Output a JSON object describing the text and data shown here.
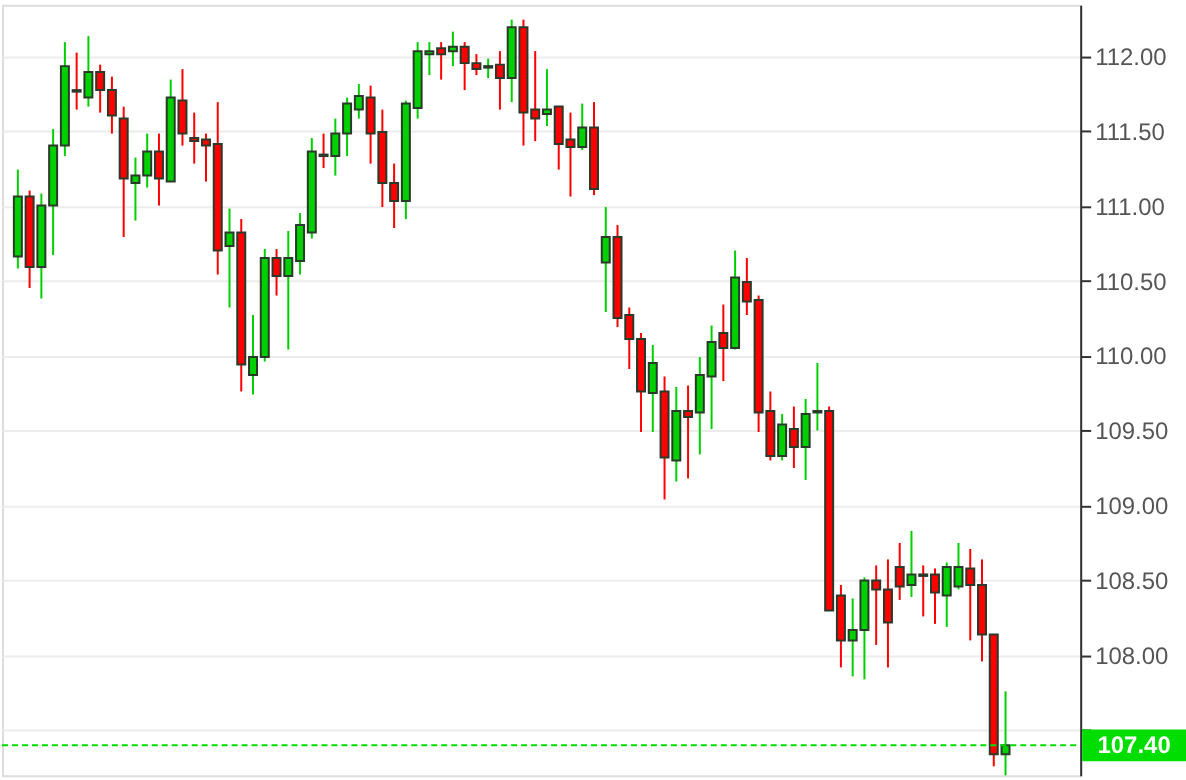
{
  "chart_data": {
    "type": "candlestick",
    "categories": [
      null,
      null,
      null,
      null,
      null,
      null,
      null,
      null,
      null,
      null,
      null,
      null,
      null,
      null,
      null,
      null,
      null,
      null,
      null,
      null,
      null,
      null,
      null,
      null,
      null,
      null,
      null,
      null,
      null,
      null,
      null,
      null,
      null,
      null,
      null,
      null,
      null,
      null,
      null,
      null,
      null,
      null,
      null,
      null,
      null,
      null,
      null,
      null,
      null,
      null,
      null,
      null,
      null,
      null,
      null,
      null,
      null,
      null,
      null,
      null,
      null,
      null,
      null,
      null,
      null,
      null,
      null,
      null,
      null,
      null,
      null,
      null,
      null,
      null,
      null,
      null,
      null,
      null,
      null,
      null,
      null,
      null,
      null,
      null,
      null
    ],
    "ohlc": [
      [
        110.66,
        111.24,
        110.58,
        111.06
      ],
      [
        111.06,
        111.1,
        110.45,
        110.59
      ],
      [
        110.59,
        111.08,
        110.38,
        111.0
      ],
      [
        111.0,
        111.51,
        110.67,
        111.4
      ],
      [
        111.4,
        112.09,
        111.33,
        111.93
      ],
      [
        111.77,
        112.02,
        111.64,
        111.76
      ],
      [
        111.72,
        112.13,
        111.66,
        111.89
      ],
      [
        111.89,
        111.94,
        111.62,
        111.77
      ],
      [
        111.77,
        111.86,
        111.48,
        111.6
      ],
      [
        111.58,
        111.66,
        110.79,
        111.18
      ],
      [
        111.15,
        111.32,
        110.9,
        111.2
      ],
      [
        111.2,
        111.48,
        111.12,
        111.36
      ],
      [
        111.36,
        111.48,
        111.0,
        111.18
      ],
      [
        111.16,
        111.84,
        111.16,
        111.72
      ],
      [
        111.7,
        111.91,
        111.4,
        111.48
      ],
      [
        111.45,
        111.62,
        111.28,
        111.43
      ],
      [
        111.44,
        111.48,
        111.16,
        111.4
      ],
      [
        111.41,
        111.69,
        110.54,
        110.7
      ],
      [
        110.73,
        110.98,
        110.32,
        110.82
      ],
      [
        110.82,
        110.91,
        109.76,
        109.94
      ],
      [
        109.87,
        110.27,
        109.74,
        109.99
      ],
      [
        109.99,
        110.71,
        109.96,
        110.65
      ],
      [
        110.65,
        110.71,
        110.4,
        110.53
      ],
      [
        110.53,
        110.83,
        110.04,
        110.65
      ],
      [
        110.63,
        110.95,
        110.54,
        110.87
      ],
      [
        110.82,
        111.45,
        110.78,
        111.36
      ],
      [
        111.34,
        111.48,
        111.25,
        111.33
      ],
      [
        111.33,
        111.58,
        111.2,
        111.48
      ],
      [
        111.48,
        111.72,
        111.33,
        111.68
      ],
      [
        111.64,
        111.81,
        111.58,
        111.73
      ],
      [
        111.72,
        111.8,
        111.28,
        111.48
      ],
      [
        111.49,
        111.64,
        110.99,
        111.15
      ],
      [
        111.15,
        111.28,
        110.85,
        111.03
      ],
      [
        111.03,
        111.7,
        110.91,
        111.68
      ],
      [
        111.65,
        112.09,
        111.58,
        112.03
      ],
      [
        112.01,
        112.09,
        111.87,
        112.03
      ],
      [
        112.05,
        112.09,
        111.84,
        112.01
      ],
      [
        112.03,
        112.16,
        111.93,
        112.06
      ],
      [
        112.06,
        112.09,
        111.77,
        111.95
      ],
      [
        111.95,
        112.01,
        111.87,
        111.91
      ],
      [
        111.92,
        111.98,
        111.85,
        111.93
      ],
      [
        111.94,
        112.03,
        111.64,
        111.85
      ],
      [
        111.85,
        112.24,
        111.69,
        112.19
      ],
      [
        112.19,
        112.24,
        111.4,
        111.62
      ],
      [
        111.64,
        112.03,
        111.43,
        111.58
      ],
      [
        111.61,
        111.91,
        111.53,
        111.64
      ],
      [
        111.66,
        111.66,
        111.24,
        111.41
      ],
      [
        111.44,
        111.62,
        111.06,
        111.39
      ],
      [
        111.39,
        111.68,
        111.37,
        111.52
      ],
      [
        111.52,
        111.69,
        111.07,
        111.11
      ],
      [
        110.62,
        110.99,
        110.29,
        110.79
      ],
      [
        110.79,
        110.87,
        110.19,
        110.25
      ],
      [
        110.27,
        110.32,
        109.91,
        110.11
      ],
      [
        110.11,
        110.15,
        109.49,
        109.76
      ],
      [
        109.75,
        110.07,
        109.49,
        109.95
      ],
      [
        109.76,
        109.86,
        109.04,
        109.32
      ],
      [
        109.3,
        109.79,
        109.16,
        109.63
      ],
      [
        109.63,
        109.8,
        109.18,
        109.59
      ],
      [
        109.62,
        109.99,
        109.34,
        109.87
      ],
      [
        109.86,
        110.2,
        109.51,
        110.09
      ],
      [
        110.15,
        110.34,
        109.83,
        110.05
      ],
      [
        110.05,
        110.7,
        110.04,
        110.52
      ],
      [
        110.49,
        110.65,
        110.27,
        110.36
      ],
      [
        110.37,
        110.4,
        109.49,
        109.62
      ],
      [
        109.63,
        109.76,
        109.3,
        109.33
      ],
      [
        109.33,
        109.61,
        109.3,
        109.54
      ],
      [
        109.51,
        109.66,
        109.25,
        109.39
      ],
      [
        109.39,
        109.71,
        109.17,
        109.61
      ],
      [
        109.62,
        109.95,
        109.5,
        109.63
      ],
      [
        109.63,
        109.66,
        108.3,
        108.3
      ],
      [
        108.4,
        108.47,
        107.92,
        108.1
      ],
      [
        108.1,
        108.38,
        107.86,
        108.17
      ],
      [
        108.17,
        108.52,
        107.84,
        108.5
      ],
      [
        108.5,
        108.6,
        108.07,
        108.44
      ],
      [
        108.44,
        108.64,
        107.92,
        108.22
      ],
      [
        108.59,
        108.75,
        108.37,
        108.46
      ],
      [
        108.47,
        108.83,
        108.39,
        108.54
      ],
      [
        108.54,
        108.6,
        108.26,
        108.53
      ],
      [
        108.54,
        108.58,
        108.21,
        108.42
      ],
      [
        108.4,
        108.62,
        108.19,
        108.59
      ],
      [
        108.46,
        108.75,
        108.44,
        108.59
      ],
      [
        108.58,
        108.71,
        108.1,
        108.47
      ],
      [
        108.47,
        108.64,
        107.96,
        108.14
      ],
      [
        108.14,
        108.14,
        107.26,
        107.34
      ],
      [
        107.34,
        107.76,
        107.2,
        107.4
      ]
    ],
    "colors": [
      "#00d000",
      "#ff0000",
      "#00d000",
      "#00d000",
      "#00d000",
      "#ff0000",
      "#00d000",
      "#ff0000",
      "#ff0000",
      "#ff0000",
      "#00d000",
      "#00d000",
      "#ff0000",
      "#00d000",
      "#ff0000",
      "#ff0000",
      "#ff0000",
      "#ff0000",
      "#00d000",
      "#ff0000",
      "#00d000",
      "#00d000",
      "#ff0000",
      "#00d000",
      "#00d000",
      "#00d000",
      "#ff0000",
      "#00d000",
      "#00d000",
      "#00d000",
      "#ff0000",
      "#ff0000",
      "#ff0000",
      "#00d000",
      "#00d000",
      "#00d000",
      "#ff0000",
      "#00d000",
      "#ff0000",
      "#ff0000",
      "#00d000",
      "#ff0000",
      "#00d000",
      "#ff0000",
      "#ff0000",
      "#00d000",
      "#ff0000",
      "#ff0000",
      "#00d000",
      "#ff0000",
      "#00d000",
      "#ff0000",
      "#ff0000",
      "#ff0000",
      "#00d000",
      "#ff0000",
      "#00d000",
      "#ff0000",
      "#00d000",
      "#00d000",
      "#ff0000",
      "#00d000",
      "#ff0000",
      "#ff0000",
      "#ff0000",
      "#00d000",
      "#ff0000",
      "#00d000",
      "#00d000",
      "#ff0000",
      "#ff0000",
      "#00d000",
      "#00d000",
      "#ff0000",
      "#ff0000",
      "#ff0000",
      "#00d000",
      "#ff0000",
      "#ff0000",
      "#00d000",
      "#00d000",
      "#ff0000",
      "#ff0000",
      "#ff0000",
      "#00d000"
    ],
    "ylim": [
      107.2,
      112.34
    ],
    "yticks": [
      {
        "value": 107.5,
        "label": null
      },
      {
        "value": 108,
        "label": "108.00"
      },
      {
        "value": 108.5,
        "label": "108.50"
      },
      {
        "value": 109,
        "label": "109.00"
      },
      {
        "value": 109.5,
        "label": "109.50"
      },
      {
        "value": 110,
        "label": "110.00"
      },
      {
        "value": 110.5,
        "label": "110.50"
      },
      {
        "value": 111,
        "label": "111.00"
      },
      {
        "value": 111.5,
        "label": "111.50"
      },
      {
        "value": 112,
        "label": "112.00"
      }
    ],
    "ref_lines": [
      {
        "axis": "y",
        "value": 107.4,
        "label": "107.40",
        "color": "#00dd00",
        "line_style": "dashed"
      }
    ],
    "grid": "y",
    "tick_labels": "y"
  }
}
